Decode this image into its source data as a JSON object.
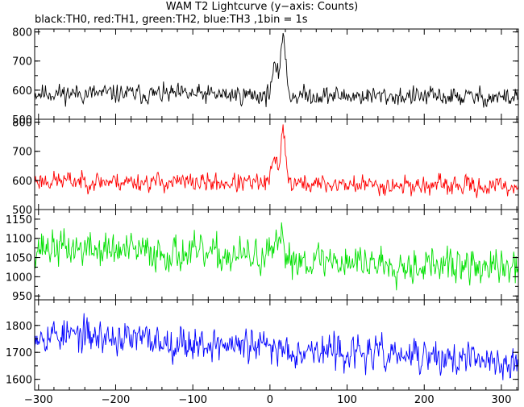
{
  "title": "WAM T2 Lightcurve (y−axis: Counts)",
  "subtitle": "black:TH0, red:TH1, green:TH2, blue:TH3 ,1bin = 1s",
  "chart_data": {
    "type": "line",
    "xlabel": "",
    "ylabel": "Counts",
    "xlim": [
      -305,
      322
    ],
    "xticks": [
      -300,
      -200,
      -100,
      0,
      100,
      200,
      300
    ],
    "xtick_labels": [
      "−300",
      "−200",
      "−100",
      "0",
      "100",
      "200",
      "300"
    ],
    "panels": [
      {
        "name": "TH0",
        "color": "#000000",
        "ylim": [
          500,
          810
        ],
        "yticks": [
          500,
          600,
          700,
          800
        ],
        "baseline_start": 590,
        "baseline_end": 575,
        "noise_amplitude": 32,
        "peak": {
          "x": 17,
          "height": 215,
          "width": 4.5
        },
        "precursor": {
          "x": 6,
          "height": 90,
          "width": 5
        },
        "seed": 11
      },
      {
        "name": "TH1",
        "color": "#ff0000",
        "ylim": [
          500,
          810
        ],
        "yticks": [
          500,
          600,
          700,
          800
        ],
        "baseline_start": 600,
        "baseline_end": 578,
        "noise_amplitude": 32,
        "peak": {
          "x": 17,
          "height": 190,
          "width": 4.5
        },
        "precursor": {
          "x": 6,
          "height": 80,
          "width": 5
        },
        "seed": 23
      },
      {
        "name": "TH2",
        "color": "#00e000",
        "ylim": [
          940,
          1175
        ],
        "yticks": [
          950,
          1000,
          1050,
          1100,
          1150
        ],
        "baseline_start": 1078,
        "baseline_end": 1020,
        "noise_amplitude": 46,
        "peak": {
          "x": 15,
          "height": 40,
          "width": 6
        },
        "precursor": {
          "x": 5,
          "height": 15,
          "width": 5
        },
        "seed": 37
      },
      {
        "name": "TH3",
        "color": "#0000ff",
        "ylim": [
          1560,
          1895
        ],
        "yticks": [
          1600,
          1700,
          1800
        ],
        "baseline_start": 1772,
        "baseline_end": 1660,
        "noise_amplitude": 62,
        "peak": {
          "x": 15,
          "height": 0,
          "width": 6
        },
        "precursor": {
          "x": 5,
          "height": 0,
          "width": 5
        },
        "seed": 53
      }
    ]
  }
}
